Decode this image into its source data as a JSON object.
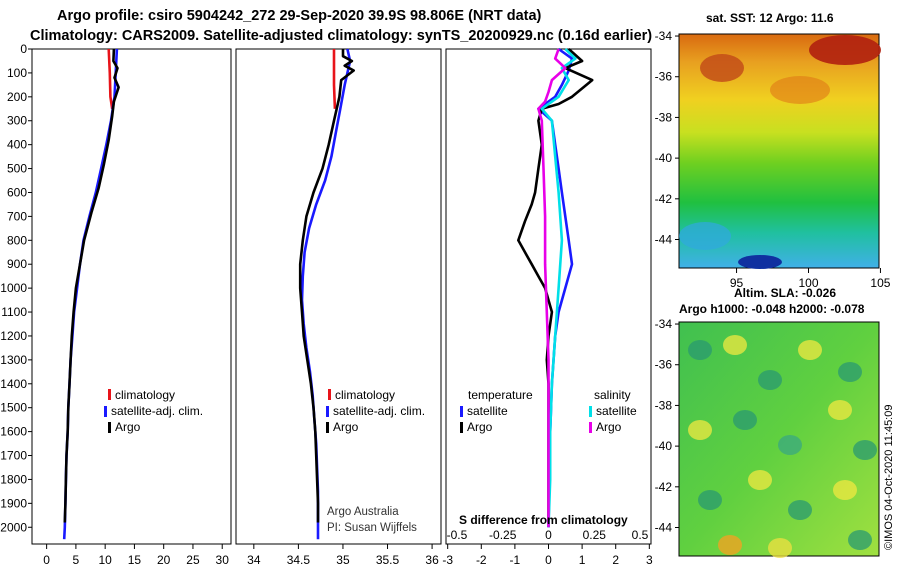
{
  "title_line1": "Argo profile: csiro 5904242_272 29-Sep-2020 39.9S 98.806E (NRT data)",
  "title_line2": "Climatology: CARS2009. Satellite-adjusted climatology: synTS_20200929.nc (0.16d earlier)",
  "credit_line1": "Argo Australia",
  "credit_line2": "PI: Susan Wijffels",
  "watermark": "©IMOS 04-Oct-2020 11:45:09",
  "colors": {
    "climatology": "#e8141a",
    "satellite": "#1a1aff",
    "argo": "#000000",
    "satellite_salinity": "#00e0e8",
    "argo_salinity": "#e800e8"
  },
  "chart_data": [
    {
      "id": "temperature",
      "type": "line",
      "ylabel": "",
      "ylim": [
        2070,
        0
      ],
      "y_ticks": [
        0,
        100,
        200,
        300,
        400,
        500,
        600,
        700,
        800,
        900,
        1000,
        1100,
        1200,
        1300,
        1400,
        1500,
        1600,
        1700,
        1800,
        1900,
        2000
      ],
      "xlim": [
        -2.5,
        31.5
      ],
      "x_ticks": [
        0,
        5,
        10,
        15,
        20,
        25,
        30
      ],
      "legend": [
        "climatology",
        "satellite-adj. clim.",
        "Argo"
      ],
      "series": [
        {
          "name": "climatology",
          "color": "climatology",
          "points": [
            [
              10.6,
              0
            ],
            [
              10.8,
              100
            ],
            [
              10.9,
              200
            ],
            [
              11.2,
              250
            ]
          ]
        },
        {
          "name": "satellite-adj. clim.",
          "color": "satellite",
          "points": [
            [
              12.0,
              0
            ],
            [
              11.8,
              100
            ],
            [
              11.6,
              200
            ],
            [
              11.0,
              300
            ],
            [
              10.2,
              400
            ],
            [
              9.3,
              500
            ],
            [
              8.4,
              600
            ],
            [
              7.3,
              700
            ],
            [
              6.3,
              800
            ],
            [
              5.7,
              900
            ],
            [
              5.2,
              1000
            ],
            [
              4.7,
              1100
            ],
            [
              4.4,
              1200
            ],
            [
              4.1,
              1300
            ],
            [
              3.9,
              1400
            ],
            [
              3.7,
              1500
            ],
            [
              3.6,
              1600
            ],
            [
              3.4,
              1700
            ],
            [
              3.3,
              1800
            ],
            [
              3.2,
              1900
            ],
            [
              3.1,
              2000
            ],
            [
              3.0,
              2050
            ]
          ]
        },
        {
          "name": "Argo",
          "color": "argo",
          "points": [
            [
              11.5,
              0
            ],
            [
              11.4,
              50
            ],
            [
              12.1,
              80
            ],
            [
              11.6,
              120
            ],
            [
              12.3,
              160
            ],
            [
              11.5,
              220
            ],
            [
              11.2,
              280
            ],
            [
              10.6,
              380
            ],
            [
              9.8,
              480
            ],
            [
              8.9,
              580
            ],
            [
              7.7,
              680
            ],
            [
              6.4,
              800
            ],
            [
              5.7,
              900
            ],
            [
              5.0,
              1000
            ],
            [
              4.6,
              1100
            ],
            [
              4.3,
              1200
            ],
            [
              4.1,
              1300
            ],
            [
              3.9,
              1400
            ],
            [
              3.7,
              1500
            ],
            [
              3.6,
              1600
            ],
            [
              3.4,
              1700
            ],
            [
              3.3,
              1800
            ],
            [
              3.2,
              1900
            ],
            [
              3.1,
              1980
            ]
          ]
        }
      ]
    },
    {
      "id": "salinity",
      "type": "line",
      "ylim": [
        2070,
        0
      ],
      "xlim": [
        33.8,
        36.1
      ],
      "x_ticks": [
        34,
        34.5,
        35,
        35.5,
        36
      ],
      "legend": [
        "climatology",
        "satellite-adj. clim.",
        "Argo"
      ],
      "series": [
        {
          "name": "climatology",
          "color": "climatology",
          "points": [
            [
              34.9,
              0
            ],
            [
              34.9,
              150
            ],
            [
              34.91,
              250
            ]
          ]
        },
        {
          "name": "satellite-adj. clim.",
          "color": "satellite",
          "points": [
            [
              35.05,
              0
            ],
            [
              35.08,
              50
            ],
            [
              35.05,
              100
            ],
            [
              35.02,
              150
            ],
            [
              34.97,
              250
            ],
            [
              34.92,
              350
            ],
            [
              34.87,
              450
            ],
            [
              34.8,
              550
            ],
            [
              34.7,
              650
            ],
            [
              34.62,
              750
            ],
            [
              34.57,
              850
            ],
            [
              34.55,
              950
            ],
            [
              34.54,
              1050
            ],
            [
              34.56,
              1150
            ],
            [
              34.59,
              1250
            ],
            [
              34.63,
              1350
            ],
            [
              34.66,
              1450
            ],
            [
              34.68,
              1550
            ],
            [
              34.7,
              1650
            ],
            [
              34.71,
              1750
            ],
            [
              34.72,
              1850
            ],
            [
              34.72,
              1950
            ],
            [
              34.72,
              2050
            ]
          ]
        },
        {
          "name": "Argo",
          "color": "argo",
          "points": [
            [
              35.0,
              0
            ],
            [
              35.0,
              30
            ],
            [
              35.1,
              50
            ],
            [
              35.02,
              70
            ],
            [
              35.12,
              90
            ],
            [
              34.98,
              130
            ],
            [
              34.96,
              200
            ],
            [
              34.9,
              300
            ],
            [
              34.84,
              400
            ],
            [
              34.77,
              500
            ],
            [
              34.67,
              600
            ],
            [
              34.59,
              700
            ],
            [
              34.55,
              800
            ],
            [
              34.52,
              900
            ],
            [
              34.52,
              1000
            ],
            [
              34.54,
              1100
            ],
            [
              34.56,
              1200
            ],
            [
              34.6,
              1300
            ],
            [
              34.64,
              1400
            ],
            [
              34.67,
              1500
            ],
            [
              34.69,
              1600
            ],
            [
              34.7,
              1700
            ],
            [
              34.71,
              1800
            ],
            [
              34.72,
              1900
            ],
            [
              34.72,
              1980
            ]
          ]
        }
      ]
    },
    {
      "id": "difference",
      "type": "line",
      "title": "S difference from climatology",
      "ylim": [
        2070,
        0
      ],
      "xlim": [
        -3.05,
        3.05
      ],
      "x_ticks": [
        -3,
        -2,
        -1,
        0,
        1,
        2,
        3
      ],
      "top_ticks": [
        -0.5,
        -0.25,
        0,
        0.25,
        0.5
      ],
      "legend_left_title": "temperature",
      "legend_right_title": "salinity",
      "legend_left": [
        "satellite",
        "Argo"
      ],
      "legend_right": [
        "satellite",
        "Argo"
      ],
      "series": [
        {
          "name": "temperature satellite",
          "color": "satellite",
          "points": [
            [
              0.3,
              0
            ],
            [
              0.7,
              40
            ],
            [
              0.6,
              90
            ],
            [
              0.4,
              150
            ],
            [
              0.2,
              200
            ],
            [
              -0.3,
              250
            ],
            [
              0.1,
              300
            ],
            [
              0.2,
              400
            ],
            [
              0.3,
              500
            ],
            [
              0.4,
              600
            ],
            [
              0.5,
              700
            ],
            [
              0.6,
              800
            ],
            [
              0.7,
              900
            ],
            [
              0.5,
              1000
            ],
            [
              0.3,
              1100
            ],
            [
              0.2,
              1200
            ],
            [
              0.1,
              1400
            ],
            [
              0.05,
              1600
            ],
            [
              0.0,
              2000
            ]
          ]
        },
        {
          "name": "temperature Argo",
          "color": "argo",
          "points": [
            [
              0.6,
              0
            ],
            [
              1.0,
              50
            ],
            [
              0.5,
              80
            ],
            [
              1.3,
              130
            ],
            [
              0.7,
              200
            ],
            [
              0.3,
              230
            ],
            [
              -0.2,
              250
            ],
            [
              -0.3,
              300
            ],
            [
              -0.2,
              400
            ],
            [
              -0.3,
              500
            ],
            [
              -0.4,
              600
            ],
            [
              -0.5,
              650
            ],
            [
              -0.7,
              720
            ],
            [
              -0.9,
              800
            ],
            [
              -0.7,
              850
            ],
            [
              -0.5,
              900
            ],
            [
              -0.3,
              950
            ],
            [
              -0.1,
              1000
            ],
            [
              0.0,
              1050
            ],
            [
              0.1,
              1100
            ],
            [
              0.0,
              1200
            ],
            [
              -0.05,
              1300
            ],
            [
              0.0,
              1400
            ],
            [
              0.0,
              1600
            ],
            [
              0.0,
              1800
            ],
            [
              0.0,
              1980
            ]
          ]
        },
        {
          "name": "salinity satellite",
          "color": "satellite_salinity",
          "points": [
            [
              0.5,
              0
            ],
            [
              0.8,
              40
            ],
            [
              0.4,
              80
            ],
            [
              0.6,
              130
            ],
            [
              0.3,
              200
            ],
            [
              -0.2,
              250
            ],
            [
              0.1,
              300
            ],
            [
              0.2,
              450
            ],
            [
              0.3,
              600
            ],
            [
              0.4,
              800
            ],
            [
              0.3,
              1000
            ],
            [
              0.2,
              1200
            ],
            [
              0.1,
              1400
            ],
            [
              0.05,
              1600
            ],
            [
              0.05,
              1800
            ],
            [
              0.0,
              2000
            ]
          ]
        },
        {
          "name": "salinity Argo",
          "color": "argo_salinity",
          "points": [
            [
              0.3,
              0
            ],
            [
              0.2,
              40
            ],
            [
              0.5,
              80
            ],
            [
              0.1,
              130
            ],
            [
              0.0,
              180
            ],
            [
              -0.1,
              220
            ],
            [
              -0.3,
              250
            ],
            [
              -0.2,
              300
            ],
            [
              -0.15,
              500
            ],
            [
              -0.1,
              700
            ],
            [
              -0.1,
              900
            ],
            [
              -0.05,
              1100
            ],
            [
              0.0,
              1300
            ],
            [
              0.0,
              1500
            ],
            [
              0.0,
              1700
            ],
            [
              0.0,
              1900
            ],
            [
              0.0,
              2000
            ]
          ]
        }
      ]
    },
    {
      "id": "sst_map",
      "type": "heatmap",
      "title": "sat. SST: 12 Argo: 11.6",
      "lat_ticks": [
        -34,
        -36,
        -38,
        -40,
        -42,
        -44
      ],
      "lon_ticks": [
        95,
        100,
        105
      ],
      "lat_range": [
        -45.4,
        -33.9
      ],
      "lon_range": [
        91.0,
        104.9
      ]
    },
    {
      "id": "sla_map",
      "type": "heatmap",
      "title": "Altim. SLA: -0.026",
      "subtitle": "Argo h1000: -0.048 h2000: -0.078",
      "lat_ticks": [
        -34,
        -36,
        -38,
        -40,
        -42,
        -44
      ],
      "lat_range": [
        -45.4,
        -33.9
      ]
    }
  ]
}
